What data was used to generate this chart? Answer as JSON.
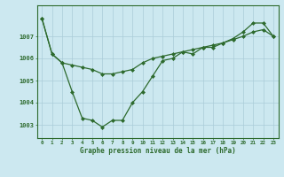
{
  "line1_x": [
    0,
    1,
    2,
    3,
    4,
    5,
    6,
    7,
    8,
    9,
    10,
    11,
    12,
    13,
    14,
    15,
    16,
    17,
    18,
    19,
    20,
    21,
    22,
    23
  ],
  "line1_y": [
    1007.8,
    1006.2,
    1005.8,
    1005.7,
    1005.6,
    1005.5,
    1005.3,
    1005.3,
    1005.4,
    1005.5,
    1005.8,
    1006.0,
    1006.1,
    1006.2,
    1006.3,
    1006.4,
    1006.5,
    1006.6,
    1006.7,
    1006.85,
    1007.0,
    1007.2,
    1007.3,
    1007.0
  ],
  "line2_x": [
    0,
    1,
    2,
    3,
    4,
    5,
    6,
    7,
    8,
    9,
    10,
    11,
    12,
    13,
    14,
    15,
    16,
    17,
    18,
    19,
    20,
    21,
    22,
    23
  ],
  "line2_y": [
    1007.8,
    1006.2,
    1005.8,
    1004.5,
    1003.3,
    1003.2,
    1002.9,
    1003.2,
    1003.2,
    1004.0,
    1004.5,
    1005.2,
    1005.9,
    1006.0,
    1006.3,
    1006.2,
    1006.5,
    1006.5,
    1006.7,
    1006.9,
    1007.2,
    1007.6,
    1007.6,
    1007.0
  ],
  "xlabel": "Graphe pression niveau de la mer (hPa)",
  "ylim": [
    1002.4,
    1008.4
  ],
  "yticks": [
    1003,
    1004,
    1005,
    1006,
    1007
  ],
  "xticks": [
    0,
    1,
    2,
    3,
    4,
    5,
    6,
    7,
    8,
    9,
    10,
    11,
    12,
    13,
    14,
    15,
    16,
    17,
    18,
    19,
    20,
    21,
    22,
    23
  ],
  "line_color": "#2d6a2d",
  "bg_color": "#cce8f0",
  "grid_color": "#aaccd8",
  "spine_color": "#2d6a2d"
}
